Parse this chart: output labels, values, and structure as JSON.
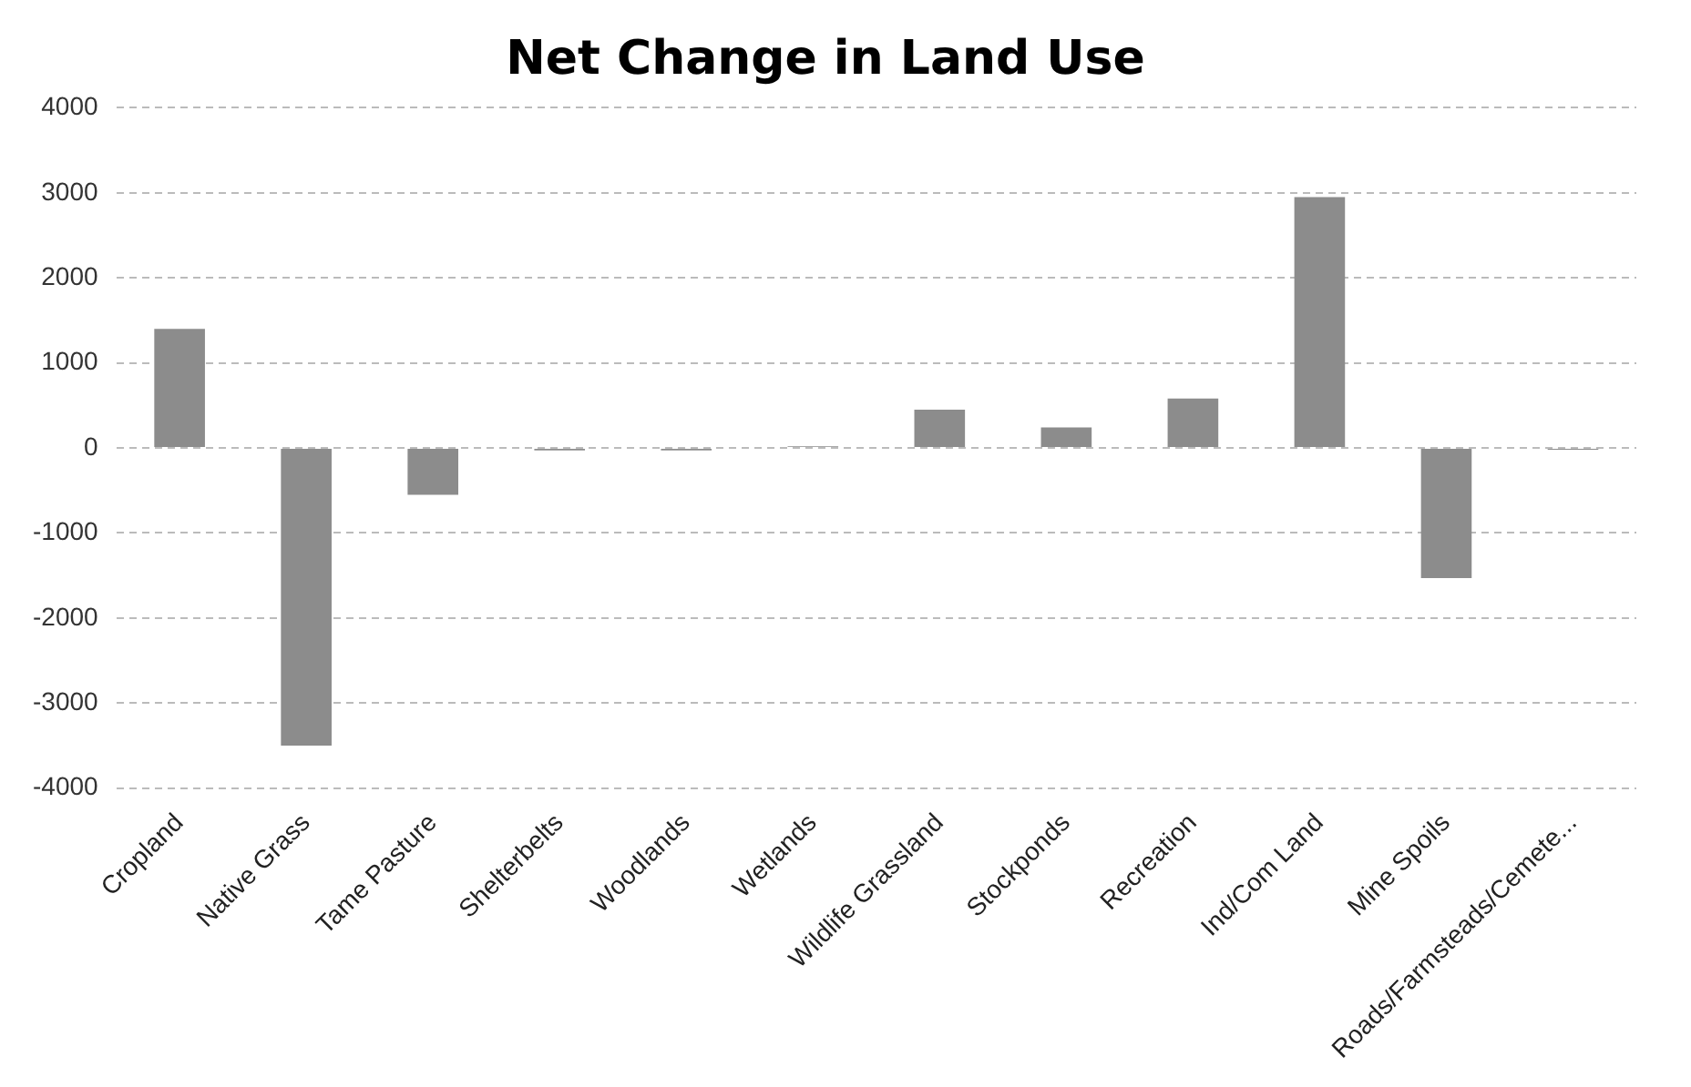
{
  "chart_data": {
    "type": "bar",
    "title": "Net Change in Land Use",
    "categories": [
      "Cropland",
      "Native Grass",
      "Tame Pasture",
      "Shelterbelts",
      "Woodlands",
      "Wetlands",
      "Wildlife Grassland",
      "Stockponds",
      "Recreation",
      "Ind/Com Land",
      "Mine Spoils",
      "Roads/Farmsteads/Cemete..."
    ],
    "values": [
      1400,
      -3500,
      -550,
      -30,
      -30,
      20,
      450,
      240,
      580,
      2950,
      -1530,
      -20
    ],
    "color": "#8c8c8c",
    "ylim": [
      -4000,
      4000
    ],
    "yticks": [
      -4000,
      -3000,
      -2000,
      -1000,
      0,
      1000,
      2000,
      3000,
      4000
    ],
    "grid": "y",
    "legend": false
  }
}
